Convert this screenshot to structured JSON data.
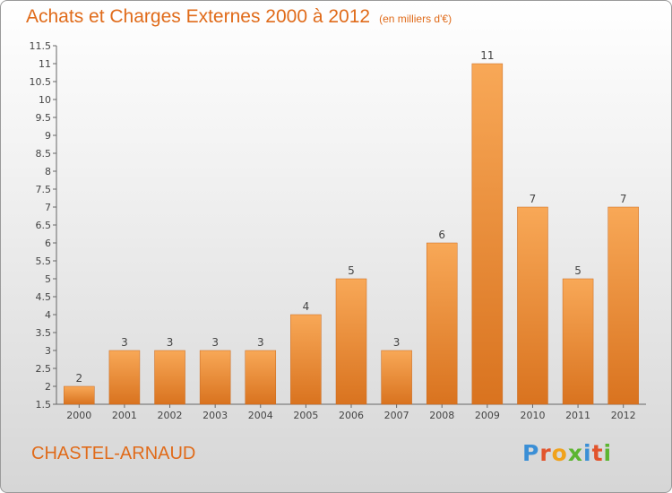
{
  "chart_data": {
    "type": "bar",
    "title": "Achats et Charges Externes 2000 à 2012",
    "subtitle": "(en milliers d'€)",
    "categories": [
      "2000",
      "2001",
      "2002",
      "2003",
      "2004",
      "2005",
      "2006",
      "2007",
      "2008",
      "2009",
      "2010",
      "2011",
      "2012"
    ],
    "values": [
      2,
      3,
      3,
      3,
      3,
      4,
      5,
      3,
      6,
      11,
      7,
      5,
      7
    ],
    "ylim": [
      1.5,
      11.5
    ],
    "yticks": [
      "1.5",
      "2",
      "2.5",
      "3",
      "3.5",
      "4",
      "4.5",
      "5",
      "5.5",
      "6",
      "6.5",
      "7",
      "7.5",
      "8",
      "8.5",
      "9",
      "9.5",
      "10",
      "10.5",
      "11",
      "11.5"
    ],
    "grid": false,
    "bar_color": "#f08a2e"
  },
  "footer": {
    "place": "CHASTEL-ARNAUD",
    "logo": "Proxiti",
    "logo_colors": [
      "#3b8fd6",
      "#e2542c",
      "#f0a21c",
      "#5cb531",
      "#3b8fd6",
      "#e2542c",
      "#5cb531"
    ]
  }
}
